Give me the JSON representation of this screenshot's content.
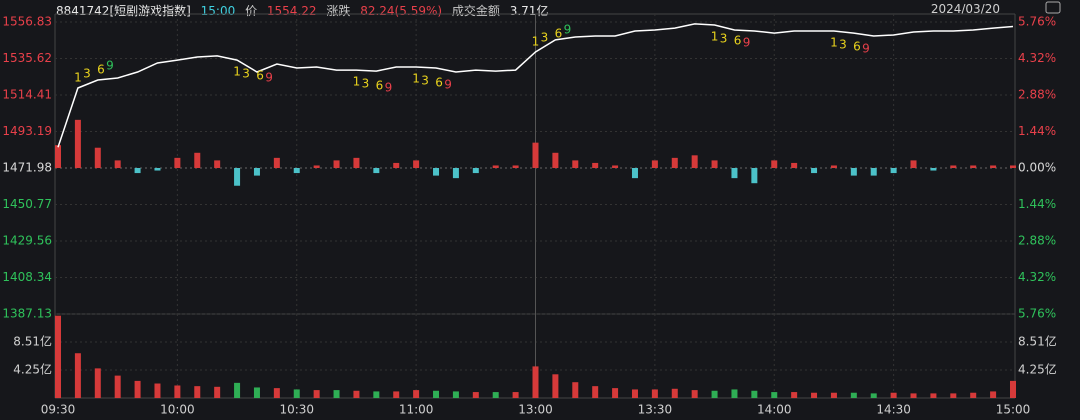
{
  "header": {
    "code": "8841742[短剧游戏指数]",
    "time": "15:00",
    "price_label": "价",
    "price": "1554.22",
    "change_label": "涨跌",
    "change": "82.24(5.59%)",
    "amount_label": "成交金额",
    "amount": "3.71亿",
    "date": "2024/03/20"
  },
  "chart_data": [
    {
      "type": "line",
      "color": "#ffffff",
      "categories": [
        "09:30",
        null,
        null,
        null,
        null,
        null,
        "10:00",
        null,
        null,
        null,
        null,
        null,
        "10:30",
        null,
        null,
        null,
        null,
        null,
        "11:00",
        null,
        null,
        null,
        null,
        null,
        "13:00",
        null,
        null,
        null,
        null,
        null,
        "13:30",
        null,
        null,
        null,
        null,
        null,
        "14:00",
        null,
        null,
        null,
        null,
        null,
        "14:30",
        null,
        null,
        null,
        null,
        null,
        "15:00"
      ],
      "values": [
        1484,
        1518.5,
        1523.1,
        1524.3,
        1527.8,
        1533.0,
        1534.7,
        1536.5,
        1537.1,
        1534.7,
        1527.8,
        1532.4,
        1530.1,
        1530.7,
        1528.9,
        1528.9,
        1528.3,
        1530.7,
        1530.7,
        1530.1,
        1527.8,
        1528.9,
        1528.3,
        1528.9,
        1539.4,
        1546.4,
        1548.1,
        1548.7,
        1548.7,
        1551.6,
        1552.2,
        1553.3,
        1555.7,
        1555.1,
        1552.2,
        1551.6,
        1550.4,
        1551.6,
        1551.6,
        1551.6,
        1550.4,
        1548.7,
        1549.3,
        1551.0,
        1551.6,
        1551.6,
        1552.2,
        1553.3,
        1554.22
      ],
      "ylim": [
        1387.13,
        1556.83
      ],
      "yticks": [
        1387.13,
        1408.34,
        1429.56,
        1450.77,
        1471.98,
        1493.19,
        1514.41,
        1535.62,
        1556.83
      ],
      "y2lim": [
        -5.76,
        5.76
      ],
      "y2ticks": [
        {
          "value": -5.76,
          "label": "5.76%"
        },
        {
          "value": -4.32,
          "label": "4.32%"
        },
        {
          "value": -2.88,
          "label": "2.88%"
        },
        {
          "value": -1.44,
          "label": "1.44%"
        },
        {
          "value": 0,
          "label": "0.00%"
        },
        {
          "value": 1.44,
          "label": "1.44%"
        },
        {
          "value": 2.88,
          "label": "2.88%"
        },
        {
          "value": 4.32,
          "label": "4.32%"
        },
        {
          "value": 5.76,
          "label": "5.76%"
        }
      ],
      "up_color": "#e8404a",
      "down_color": "#2fc25b",
      "flat_color": "#d8d8d8",
      "grid": true,
      "annotations": [
        {
          "labels": [
            "1",
            "3",
            "6",
            "9"
          ],
          "index": 1,
          "side": "above",
          "colors": [
            "#e8d21d",
            "#e8d21d",
            "#e8d21d",
            "#2fc25b"
          ]
        },
        {
          "labels": [
            "1",
            "3",
            "6",
            "9"
          ],
          "index": 9,
          "side": "below",
          "colors": [
            "#e8d21d",
            "#e8d21d",
            "#e8d21d",
            "#e8404a"
          ]
        },
        {
          "labels": [
            "1",
            "3",
            "6",
            "9"
          ],
          "index": 15,
          "side": "below",
          "colors": [
            "#e8d21d",
            "#e8d21d",
            "#e8d21d",
            "#e8404a"
          ]
        },
        {
          "labels": [
            "1",
            "3",
            "6",
            "9"
          ],
          "index": 18,
          "side": "below",
          "colors": [
            "#e8d21d",
            "#e8d21d",
            "#e8d21d",
            "#e8404a"
          ]
        },
        {
          "labels": [
            "1",
            "3",
            "6",
            "9"
          ],
          "index": 24,
          "side": "above",
          "colors": [
            "#e8d21d",
            "#e8d21d",
            "#e8d21d",
            "#2fc25b"
          ]
        },
        {
          "labels": [
            "1",
            "3",
            "6",
            "9"
          ],
          "index": 33,
          "side": "below",
          "colors": [
            "#e8d21d",
            "#e8d21d",
            "#e8d21d",
            "#e8404a"
          ]
        },
        {
          "labels": [
            "1",
            "3",
            "6",
            "9"
          ],
          "index": 39,
          "side": "below",
          "colors": [
            "#e8d21d",
            "#e8d21d",
            "#e8d21d",
            "#e8404a"
          ]
        }
      ]
    },
    {
      "type": "bar",
      "axis": "y2",
      "up_color": "#d63a3a",
      "down_color": "#4cc2c9",
      "values": [
        0.9,
        1.9,
        0.8,
        0.3,
        -0.2,
        -0.1,
        0.4,
        0.6,
        0.3,
        -0.7,
        -0.3,
        0.4,
        -0.2,
        0.1,
        0.3,
        0.4,
        -0.2,
        0.2,
        0.3,
        -0.3,
        -0.4,
        -0.2,
        0.1,
        0.1,
        1.0,
        0.6,
        0.3,
        0.2,
        0.1,
        -0.4,
        0.3,
        0.4,
        0.5,
        0.3,
        -0.4,
        -0.6,
        0.3,
        0.2,
        -0.2,
        0.1,
        -0.3,
        -0.3,
        -0.2,
        0.3,
        -0.1,
        0.1,
        0.1,
        0.1,
        0.1
      ]
    },
    {
      "type": "bar",
      "up_color": "#d63a3a",
      "down_color": "#2fae55",
      "values": [
        12.5,
        6.8,
        4.5,
        3.4,
        2.6,
        2.2,
        1.9,
        1.8,
        1.7,
        2.3,
        1.6,
        1.5,
        1.3,
        1.2,
        1.2,
        1.1,
        1.0,
        1.0,
        1.2,
        1.1,
        1.0,
        0.9,
        0.9,
        0.9,
        4.8,
        3.6,
        2.4,
        1.8,
        1.5,
        1.3,
        1.3,
        1.4,
        1.2,
        1.1,
        1.3,
        1.1,
        0.9,
        0.9,
        0.8,
        0.8,
        0.8,
        0.7,
        0.8,
        0.7,
        0.7,
        0.7,
        0.8,
        1.0,
        2.6
      ],
      "ylim": [
        0,
        12.76
      ],
      "yticks": [
        {
          "value": 4.25,
          "label": "4.25亿"
        },
        {
          "value": 8.51,
          "label": "8.51亿"
        }
      ]
    }
  ]
}
